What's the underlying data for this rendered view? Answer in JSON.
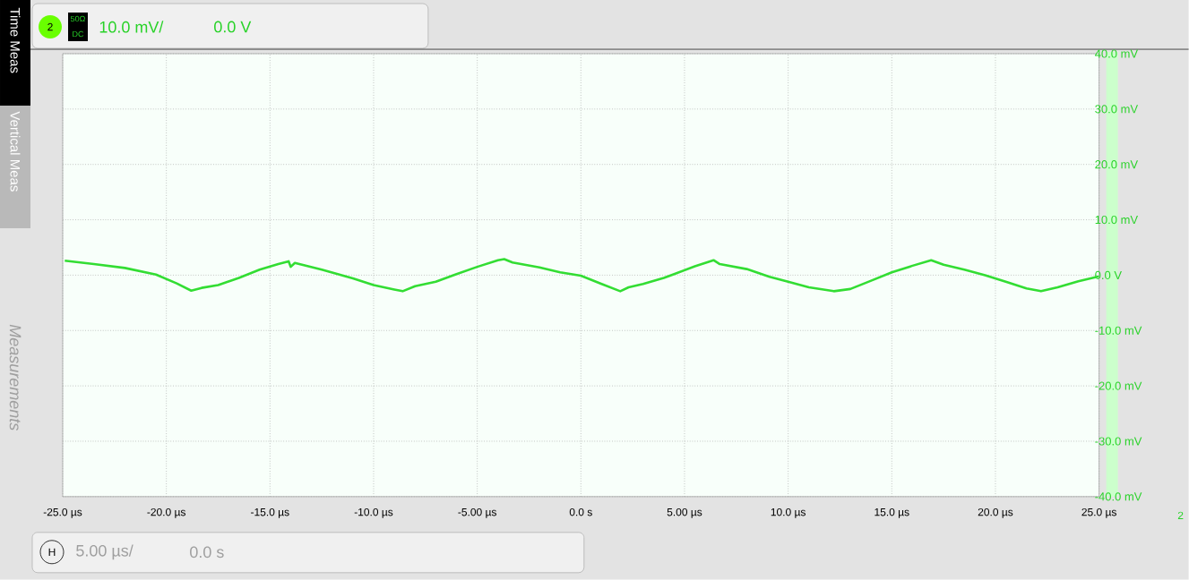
{
  "chart_data": {
    "type": "line",
    "series": [
      {
        "color": "#33dd33",
        "x": [
          -24.9,
          -23.5,
          -22,
          -20.5,
          -19.5,
          -18.8,
          -18.3,
          -17.5,
          -16.5,
          -15.5,
          -14.6,
          -14.1,
          -14.0,
          -13.8,
          -12.5,
          -11,
          -10,
          -9,
          -8.6,
          -8,
          -7,
          -6,
          -5,
          -4,
          -3.7,
          -3.3,
          -2,
          -1,
          0,
          1,
          1.9,
          2.3,
          3,
          4,
          4.5,
          5.5,
          6.4,
          6.7,
          8,
          9.1,
          10,
          11,
          12.2,
          13,
          14,
          15,
          16,
          16.9,
          17.5,
          18.5,
          19.5,
          20.5,
          21.5,
          22.2,
          23,
          24,
          25
        ],
        "values": [
          2.6,
          2.0,
          1.3,
          0.1,
          -1.5,
          -2.8,
          -2.3,
          -1.8,
          -0.5,
          1.0,
          2.0,
          2.5,
          1.5,
          2.2,
          1.0,
          -0.6,
          -1.8,
          -2.6,
          -2.9,
          -2.0,
          -1.2,
          0.2,
          1.5,
          2.7,
          2.9,
          2.3,
          1.4,
          0.5,
          -0.1,
          -1.6,
          -2.9,
          -2.2,
          -1.6,
          -0.5,
          0.2,
          1.6,
          2.7,
          2.0,
          1.1,
          -0.3,
          -1.2,
          -2.2,
          -2.9,
          -2.5,
          -1.0,
          0.5,
          1.7,
          2.7,
          1.9,
          1.0,
          0.0,
          -1.2,
          -2.4,
          -2.9,
          -2.2,
          -1.1,
          -0.2
        ]
      }
    ],
    "xlim": [
      -25,
      25
    ],
    "ylim": [
      -40,
      40
    ],
    "xticks": [
      {
        "value": -25,
        "label": "-25.0 µs"
      },
      {
        "value": -20,
        "label": "-20.0 µs"
      },
      {
        "value": -15,
        "label": "-15.0 µs"
      },
      {
        "value": -10,
        "label": "-10.0 µs"
      },
      {
        "value": -5,
        "label": "-5.00 µs"
      },
      {
        "value": 0,
        "label": "0.0 s"
      },
      {
        "value": 5,
        "label": "5.00 µs"
      },
      {
        "value": 10,
        "label": "10.0 µs"
      },
      {
        "value": 15,
        "label": "15.0 µs"
      },
      {
        "value": 20,
        "label": "20.0 µs"
      },
      {
        "value": 25,
        "label": "25.0 µs"
      }
    ],
    "yticks": [
      {
        "value": 40,
        "label": "40.0 mV"
      },
      {
        "value": 30,
        "label": "30.0 mV"
      },
      {
        "value": 20,
        "label": "20.0 mV"
      },
      {
        "value": 10,
        "label": "10.0 mV"
      },
      {
        "value": 0,
        "label": "0.0 V"
      },
      {
        "value": -10,
        "label": "-10.0 mV"
      },
      {
        "value": -20,
        "label": "-20.0 mV"
      },
      {
        "value": -30,
        "label": "-30.0 mV"
      },
      {
        "value": -40,
        "label": "-40.0 mV"
      }
    ],
    "grid": true,
    "annotations": [
      "2",
      "50Ω",
      "DC",
      "10.0 mV/",
      "0.0 V",
      "Time Meas",
      "Vertical Meas",
      "Measurements",
      "H",
      "5.00 µs/",
      "0.0 s",
      "2"
    ]
  }
}
